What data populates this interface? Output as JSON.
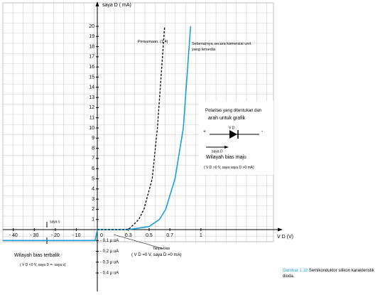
{
  "chart_data": {
    "type": "line",
    "y_label": "saya D ( mA)",
    "x_label": "V D (V)",
    "origin_label": "0",
    "xlim": [
      -45,
      1.7
    ],
    "ylim": [
      -0.45,
      21
    ],
    "xticks": [
      {
        "value": -40,
        "label": "- 40"
      },
      {
        "value": -30,
        "label": "- 30"
      },
      {
        "value": -20,
        "label": "- 20"
      },
      {
        "value": -10,
        "label": "- 10"
      },
      0.3,
      0.5,
      0.7,
      1
    ],
    "yticks": [
      1,
      2,
      3,
      4,
      5,
      6,
      7,
      8,
      9,
      10,
      11,
      12,
      13,
      14,
      15,
      16,
      17,
      18,
      19,
      20,
      {
        "value": -0.1,
        "label": "- 0.1 μ uA"
      },
      {
        "value": -0.2,
        "label": "- 0.2 μ uA"
      },
      {
        "value": -0.3,
        "label": "- 0.3 μ uA"
      },
      {
        "value": -0.4,
        "label": "- 0.4 μ uA"
      }
    ],
    "series": [
      {
        "name": "Sebenarnya secara komersial unit yang tersedia",
        "color": "#1a9fd8",
        "dashed": false,
        "x": [
          -45,
          -10,
          -1,
          0,
          0.3,
          0.5,
          0.6,
          0.66,
          0.75,
          0.83,
          0.9
        ],
        "values": [
          -0.1,
          -0.1,
          -0.1,
          0,
          0,
          0.3,
          1,
          2,
          5,
          10,
          20
        ]
      },
      {
        "name": "Persamaan. (1.4)",
        "color": "#000000",
        "dashed": true,
        "x": [
          0,
          0.3,
          0.4,
          0.45,
          0.53,
          0.58,
          0.65
        ],
        "values": [
          0,
          0,
          1,
          2,
          5,
          10,
          20
        ]
      }
    ],
    "annotations": {
      "polarity_1": "Polaritas yang ditentukan dan",
      "polarity_2": "arah untuk grafik",
      "plus": "+",
      "minus": "-",
      "vd": "V D",
      "id": "saya D",
      "forward": "Wilayah bias maju",
      "forward_cond": "( V D >0 V, saya saya D >0 mA)",
      "reverse": "Wilayah bias terbalik",
      "reverse_cond": "( V D <0 V, saya D =- saya s)",
      "is": "saya s",
      "nobias": "Tanpa bias",
      "nobias_cond": "( V D =0 V, saya D =0 mA)"
    },
    "caption": {
      "figure": "Gambar 1.19",
      "text": "Semikonduktor silikon karakteristik dioda."
    }
  }
}
